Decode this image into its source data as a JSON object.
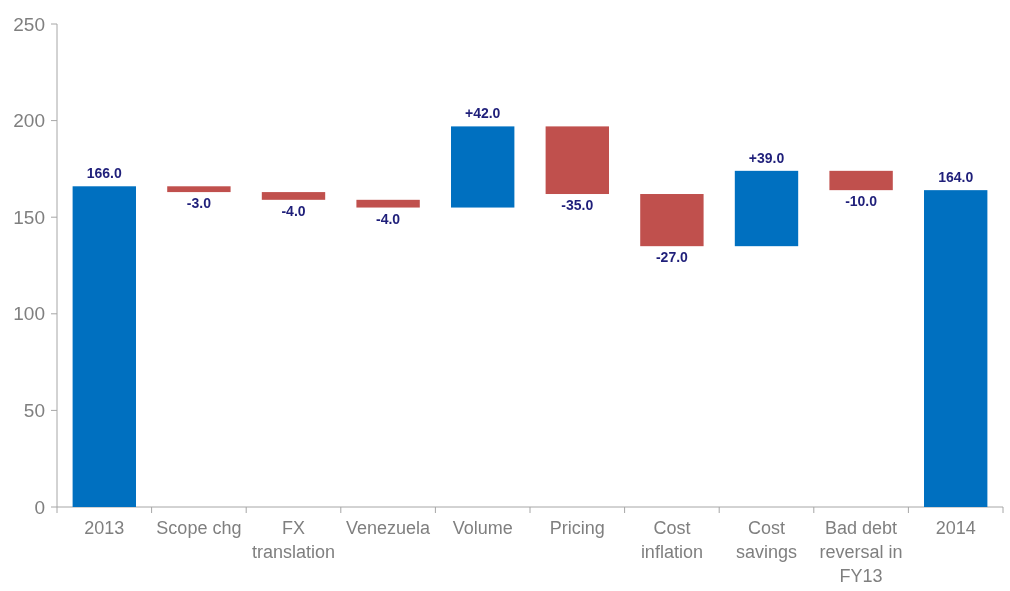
{
  "chart_data": {
    "type": "bar",
    "categories": [
      "2013",
      "Scope chg",
      "FX translation",
      "Venezuela",
      "Volume",
      "Pricing",
      "Cost inflation",
      "Cost savings",
      "Bad debt reversal in FY13",
      "2014"
    ],
    "values": [
      166,
      -3,
      -4,
      -4,
      42,
      -35,
      -27,
      39,
      -10,
      164
    ],
    "base": [
      0,
      166,
      163,
      159,
      155,
      197,
      162,
      135,
      174,
      0
    ],
    "colors": [
      "#0070c0",
      "#c0504d",
      "#c0504d",
      "#c0504d",
      "#0070c0",
      "#c0504d",
      "#c0504d",
      "#0070c0",
      "#c0504d",
      "#0070c0"
    ],
    "value_labels": [
      "166.0",
      "-3.0",
      "-4.0",
      "-4.0",
      "+42.0",
      "-35.0",
      "-27.0",
      "+39.0",
      "-10.0",
      "164.0"
    ],
    "ylim": [
      0,
      250
    ],
    "yticks": [
      0,
      50,
      100,
      150,
      200,
      250
    ]
  }
}
